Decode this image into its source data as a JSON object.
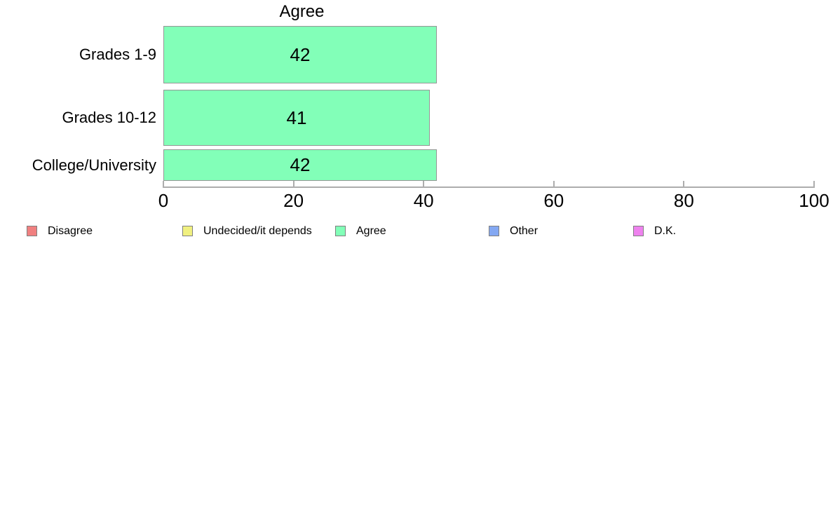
{
  "title": "Agree",
  "chart_data": {
    "type": "bar",
    "orientation": "horizontal",
    "title": "Agree",
    "categories": [
      "Grades 1-9",
      "Grades 10-12",
      "College/University"
    ],
    "values": [
      42,
      41,
      42
    ],
    "series_name": "Agree",
    "xlabel": "",
    "ylabel": "",
    "xlim": [
      0,
      100
    ],
    "x_ticks": [
      0,
      20,
      40,
      60,
      80,
      100
    ],
    "grid": false,
    "data_labels_shown": true,
    "legend_position": "bottom",
    "bar_color": "#82ffb8",
    "bar_border_color": "#969696",
    "axis_color": "#adadad"
  },
  "axis": {
    "tick_labels": [
      "0",
      "20",
      "40",
      "60",
      "80",
      "100"
    ]
  },
  "legend": {
    "items": [
      {
        "label": "Disagree",
        "color": "#f08080"
      },
      {
        "label": "Undecided/it depends",
        "color": "#f0f080"
      },
      {
        "label": "Agree",
        "color": "#82ffb8"
      },
      {
        "label": "Other",
        "color": "#84a8f2"
      },
      {
        "label": "D.K.",
        "color": "#ee82ee"
      }
    ]
  }
}
